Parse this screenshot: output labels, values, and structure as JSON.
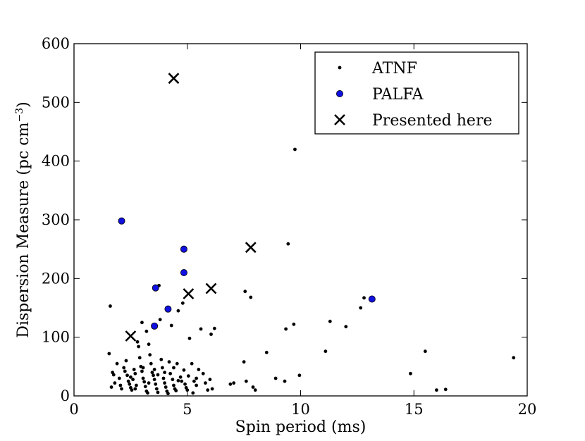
{
  "chart_data": {
    "type": "scatter",
    "xlabel": "Spin period (ms)",
    "ylabel": "Dispersion Measure (pc cm",
    "ylabel_superscript": "−3",
    "ylabel_close": ")",
    "xlim": [
      0,
      20
    ],
    "ylim": [
      0,
      600
    ],
    "x_ticks": [
      0,
      5,
      10,
      15,
      20
    ],
    "y_ticks": [
      0,
      100,
      200,
      300,
      400,
      500,
      600
    ],
    "grid": false,
    "legend_position": "top-right",
    "series": [
      {
        "name": "ATNF",
        "marker": "small-dot",
        "color": "#000000",
        "points": [
          [
            1.6,
            153
          ],
          [
            1.55,
            72
          ],
          [
            1.7,
            40
          ],
          [
            1.8,
            22
          ],
          [
            1.65,
            15
          ],
          [
            1.9,
            55
          ],
          [
            2.0,
            30
          ],
          [
            2.1,
            12
          ],
          [
            2.2,
            48
          ],
          [
            2.3,
            60
          ],
          [
            2.35,
            35
          ],
          [
            2.4,
            25
          ],
          [
            2.45,
            20
          ],
          [
            2.5,
            14
          ],
          [
            2.55,
            10
          ],
          [
            2.6,
            28
          ],
          [
            2.65,
            45
          ],
          [
            2.7,
            38
          ],
          [
            2.75,
            18
          ],
          [
            2.8,
            92
          ],
          [
            2.85,
            84
          ],
          [
            2.9,
            65
          ],
          [
            2.95,
            50
          ],
          [
            3.0,
            42
          ],
          [
            3.05,
            30
          ],
          [
            3.1,
            24
          ],
          [
            3.15,
            16
          ],
          [
            3.2,
            8
          ],
          [
            3.25,
            5
          ],
          [
            3.0,
            125
          ],
          [
            3.2,
            110
          ],
          [
            3.3,
            88
          ],
          [
            3.35,
            70
          ],
          [
            3.4,
            55
          ],
          [
            3.45,
            40
          ],
          [
            3.5,
            35
          ],
          [
            3.55,
            28
          ],
          [
            3.6,
            20
          ],
          [
            3.65,
            12
          ],
          [
            3.7,
            6
          ],
          [
            3.75,
            188
          ],
          [
            3.8,
            130
          ],
          [
            3.85,
            62
          ],
          [
            3.9,
            48
          ],
          [
            3.95,
            30
          ],
          [
            4.0,
            22
          ],
          [
            4.05,
            15
          ],
          [
            4.1,
            8
          ],
          [
            4.15,
            4
          ],
          [
            4.2,
            58
          ],
          [
            4.25,
            38
          ],
          [
            4.3,
            120
          ],
          [
            4.35,
            28
          ],
          [
            4.4,
            18
          ],
          [
            4.45,
            12
          ],
          [
            4.5,
            9
          ],
          [
            4.55,
            55
          ],
          [
            4.6,
            145
          ],
          [
            4.7,
            32
          ],
          [
            4.75,
            25
          ],
          [
            4.8,
            158
          ],
          [
            4.85,
            44
          ],
          [
            4.9,
            20
          ],
          [
            4.95,
            14
          ],
          [
            5.0,
            10
          ],
          [
            5.05,
            34
          ],
          [
            5.1,
            98
          ],
          [
            5.2,
            55
          ],
          [
            5.3,
            25
          ],
          [
            5.4,
            18
          ],
          [
            5.5,
            45
          ],
          [
            5.6,
            114
          ],
          [
            5.7,
            38
          ],
          [
            5.8,
            22
          ],
          [
            5.9,
            10
          ],
          [
            6.0,
            28
          ],
          [
            6.05,
            105
          ],
          [
            6.2,
            115
          ],
          [
            6.1,
            12
          ],
          [
            5.25,
            5
          ],
          [
            6.9,
            20
          ],
          [
            7.05,
            22
          ],
          [
            7.5,
            58
          ],
          [
            7.6,
            25
          ],
          [
            7.55,
            178
          ],
          [
            7.8,
            168
          ],
          [
            7.9,
            15
          ],
          [
            8.0,
            10
          ],
          [
            8.5,
            74
          ],
          [
            8.9,
            30
          ],
          [
            9.3,
            25
          ],
          [
            9.35,
            114
          ],
          [
            9.45,
            259
          ],
          [
            9.7,
            122
          ],
          [
            9.75,
            420
          ],
          [
            9.95,
            35
          ],
          [
            11.1,
            76
          ],
          [
            11.3,
            127
          ],
          [
            12.0,
            118
          ],
          [
            12.65,
            150
          ],
          [
            12.8,
            167
          ],
          [
            14.85,
            38
          ],
          [
            15.5,
            76
          ],
          [
            16.0,
            10
          ],
          [
            16.4,
            11
          ],
          [
            19.4,
            65
          ],
          [
            1.75,
            36
          ],
          [
            2.05,
            18
          ],
          [
            2.25,
            42
          ],
          [
            2.5,
            32
          ],
          [
            2.7,
            12
          ],
          [
            3.05,
            48
          ],
          [
            3.3,
            22
          ],
          [
            3.55,
            45
          ],
          [
            3.7,
            36
          ],
          [
            4.0,
            40
          ],
          [
            4.4,
            48
          ],
          [
            4.6,
            26
          ],
          [
            5.4,
            30
          ]
        ]
      },
      {
        "name": "PALFA",
        "marker": "circle",
        "color": "#1010e0",
        "points": [
          [
            2.1,
            298
          ],
          [
            3.6,
            184
          ],
          [
            3.55,
            119
          ],
          [
            4.15,
            148
          ],
          [
            4.85,
            250
          ],
          [
            4.85,
            210
          ],
          [
            13.15,
            165
          ]
        ]
      },
      {
        "name": "Presented here",
        "marker": "cross",
        "color": "#000000",
        "points": [
          [
            4.4,
            541
          ],
          [
            2.5,
            102
          ],
          [
            5.05,
            174
          ],
          [
            6.05,
            183
          ],
          [
            7.8,
            253
          ]
        ]
      }
    ]
  }
}
